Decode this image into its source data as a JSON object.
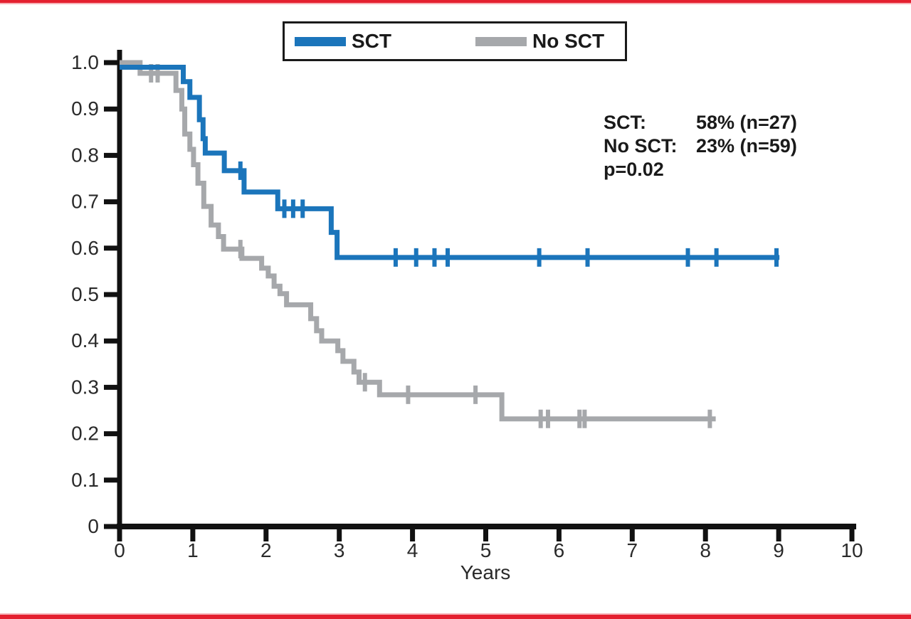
{
  "figure": {
    "frame_rule_color": "#e4202f",
    "axis_color": "#111111",
    "background": "#ffffff"
  },
  "legend": {
    "items": [
      {
        "label": "SCT",
        "color": "#1b75bb"
      },
      {
        "label": "No SCT",
        "color": "#a6a8ab"
      }
    ]
  },
  "annotation": {
    "rows": [
      {
        "label": "SCT:",
        "value": "58% (n=27)"
      },
      {
        "label": "No SCT:",
        "value": "23% (n=59)"
      },
      {
        "label": "p=0.02",
        "value": ""
      }
    ]
  },
  "chart_data": {
    "type": "line",
    "subtype": "kaplan-meier-step",
    "title": "",
    "xlabel": "Years",
    "ylabel": "",
    "xlim": [
      0,
      10
    ],
    "ylim": [
      0,
      1.0
    ],
    "x_ticks": [
      0,
      1,
      2,
      3,
      4,
      5,
      6,
      7,
      8,
      9,
      10
    ],
    "y_ticks": [
      0,
      0.1,
      0.2,
      0.3,
      0.4,
      0.5,
      0.6,
      0.7,
      0.8,
      0.9,
      1.0
    ],
    "y_tick_labels": [
      "0",
      "0.1",
      "0.2",
      "0.3",
      "0.4",
      "0.5",
      "0.6",
      "0.7",
      "0.8",
      "0.9",
      "1.0"
    ],
    "grid": false,
    "legend_position": "top-center",
    "series": [
      {
        "name": "No SCT",
        "n": 59,
        "final_survival_pct": 23,
        "color": "#a6a8ab",
        "steps": [
          [
            0,
            1.0
          ],
          [
            0.28,
            0.977
          ],
          [
            0.77,
            0.94
          ],
          [
            0.85,
            0.9
          ],
          [
            0.89,
            0.846
          ],
          [
            0.96,
            0.813
          ],
          [
            1.01,
            0.78
          ],
          [
            1.07,
            0.74
          ],
          [
            1.15,
            0.69
          ],
          [
            1.25,
            0.65
          ],
          [
            1.35,
            0.625
          ],
          [
            1.42,
            0.598
          ],
          [
            1.67,
            0.578
          ],
          [
            1.94,
            0.557
          ],
          [
            2.03,
            0.54
          ],
          [
            2.11,
            0.518
          ],
          [
            2.19,
            0.502
          ],
          [
            2.28,
            0.478
          ],
          [
            2.61,
            0.448
          ],
          [
            2.69,
            0.422
          ],
          [
            2.76,
            0.4
          ],
          [
            2.98,
            0.379
          ],
          [
            3.05,
            0.356
          ],
          [
            3.2,
            0.333
          ],
          [
            3.27,
            0.311
          ],
          [
            3.55,
            0.284
          ],
          [
            5.22,
            0.232
          ]
        ],
        "end_time": 8.14,
        "censors": [
          [
            0.43,
            0.977
          ],
          [
            0.52,
            0.977
          ],
          [
            1.65,
            0.598
          ],
          [
            3.35,
            0.311
          ],
          [
            3.94,
            0.284
          ],
          [
            4.86,
            0.284
          ],
          [
            5.75,
            0.232
          ],
          [
            5.85,
            0.232
          ],
          [
            6.28,
            0.232
          ],
          [
            6.35,
            0.232
          ],
          [
            8.06,
            0.232
          ]
        ]
      },
      {
        "name": "SCT",
        "n": 27,
        "final_survival_pct": 58,
        "color": "#1b75bb",
        "steps": [
          [
            0,
            0.99
          ],
          [
            0.87,
            0.959
          ],
          [
            0.96,
            0.925
          ],
          [
            1.09,
            0.877
          ],
          [
            1.14,
            0.836
          ],
          [
            1.17,
            0.805
          ],
          [
            1.43,
            0.767
          ],
          [
            1.7,
            0.721
          ],
          [
            2.16,
            0.685
          ],
          [
            2.89,
            0.634
          ],
          [
            2.97,
            0.58
          ]
        ],
        "end_time": 9.01,
        "censors": [
          [
            1.65,
            0.767
          ],
          [
            2.25,
            0.685
          ],
          [
            2.37,
            0.685
          ],
          [
            2.5,
            0.685
          ],
          [
            3.77,
            0.58
          ],
          [
            4.05,
            0.58
          ],
          [
            4.3,
            0.58
          ],
          [
            4.48,
            0.58
          ],
          [
            5.73,
            0.58
          ],
          [
            6.39,
            0.58
          ],
          [
            7.76,
            0.58
          ],
          [
            8.15,
            0.58
          ],
          [
            8.97,
            0.58
          ]
        ]
      }
    ],
    "stats": {
      "p_value": "p=0.02"
    }
  }
}
